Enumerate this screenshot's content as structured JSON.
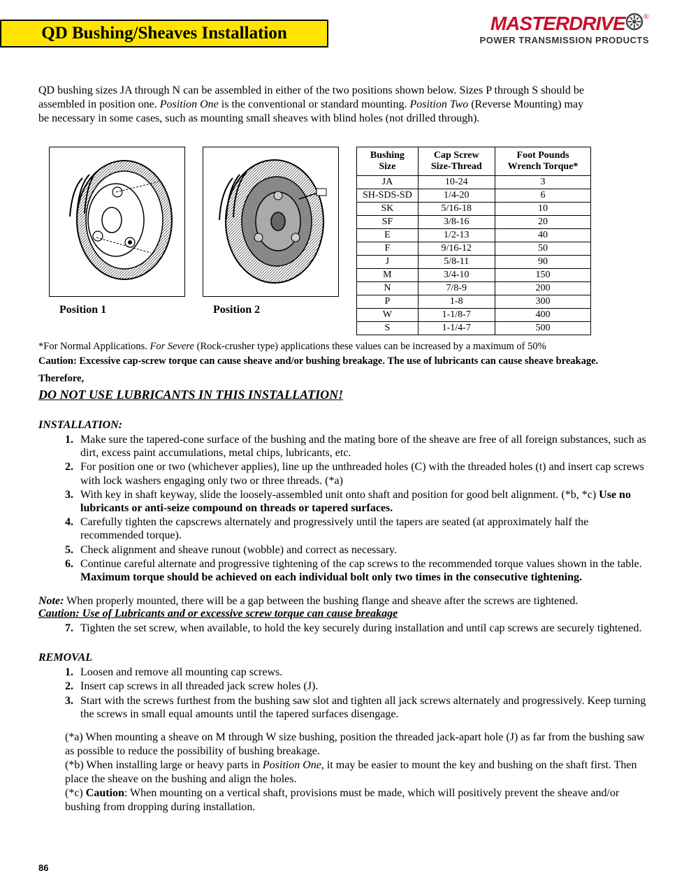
{
  "header": {
    "title": "QD Bushing/Sheaves Installation",
    "title_bg": "#ffe400",
    "title_border": "#000000"
  },
  "logo": {
    "main": "MASTERDRIVE",
    "main_color": "#c8102e",
    "reg": "®",
    "sub": "POWER TRANSMISSION PRODUCTS"
  },
  "intro": {
    "line1a": "QD bushing sizes JA through N can be assembled in either of the two positions shown below.  Sizes P through  S should be",
    "line2a": "assembled in position one.  ",
    "position_one": "Position One",
    "line2b": " is the conventional or standard mounting.  ",
    "position_two": "Position Two",
    "line2c": " (Reverse Mounting)  may",
    "line3": "be necessary in some cases, such as mounting small sheaves with blind holes (not drilled through)."
  },
  "figures": {
    "pos1_label": "Position 1",
    "pos2_label": "Position 2"
  },
  "table": {
    "headers": [
      "Bushing\nSize",
      "Cap Screw\nSize-Thread",
      "Foot Pounds\nWrench Torque*"
    ],
    "rows": [
      [
        "JA",
        "10-24",
        "3"
      ],
      [
        "SH-SDS-SD",
        "1/4-20",
        "6"
      ],
      [
        "SK",
        "5/16-18",
        "10"
      ],
      [
        "SF",
        "3/8-16",
        "20"
      ],
      [
        "E",
        "1/2-13",
        "40"
      ],
      [
        "F",
        "9/16-12",
        "50"
      ],
      [
        "J",
        "5/8-11",
        "90"
      ],
      [
        "M",
        "3/4-10",
        "150"
      ],
      [
        "N",
        "7/8-9",
        "200"
      ],
      [
        "P",
        "1-8",
        "300"
      ],
      [
        "W",
        "1-1/8-7",
        "400"
      ],
      [
        "S",
        "1-1/4-7",
        "500"
      ]
    ]
  },
  "footnote": {
    "pre": "*For Normal Applications. ",
    "severe": "For Severe",
    "post": " (Rock-crusher type) applications these values can be increased by a maximum of 50%"
  },
  "caution_line": "Caution: Excessive cap-screw torque can cause sheave and/or bushing breakage. The use of lubricants can cause sheave breakage.",
  "therefore": "Therefore,",
  "lubricant_warning": "DO NOT USE LUBRICANTS IN THIS INSTALLATION!",
  "installation": {
    "heading": "INSTALLATION:",
    "steps": [
      {
        "n": "1.",
        "text": "Make sure the tapered-cone surface of the bushing and the mating bore of the sheave are free of all foreign substances, such as dirt, excess paint accumulations, metal chips, lubricants, etc."
      },
      {
        "n": "2.",
        "text_a": "For position one or two (whichever applies), line up the unthreaded holes (C) with the threaded holes (t) and insert cap screws with lock washers engaging only two or three threads.   (*a)"
      },
      {
        "n": "3.",
        "text_a": "With key in shaft keyway, slide the loosely-assembled unit onto shaft and position for good belt alignment. (*b, *c)  ",
        "bold": "Use no lubricants or anti-seize compound on threads or tapered surfaces."
      },
      {
        "n": "4.",
        "text": "    Carefully tighten the capscrews alternately and progressively until the tapers are seated (at approximately half the recommended torque)."
      },
      {
        "n": "5.",
        "text": "    Check alignment and sheave runout (wobble) and correct as necessary."
      },
      {
        "n": "6.",
        "text_a": "    Continue careful alternate and progressive tightening of the cap screws to the recommended torque values shown in the table.  ",
        "bold": "Maximum torque should be achieved on each individual bolt only two times in the consecutive tightening."
      }
    ]
  },
  "note": {
    "label": "Note:",
    "text": "  When properly mounted, there will be a gap between the bushing flange and sheave after the screws are tightened."
  },
  "caution2": "Caution:  Use of Lubricants and or excessive screw torque can cause breakage",
  "step7": {
    "n": "7.",
    "text": "Tighten the set screw, when available, to hold the key securely during installation and until cap screws are securely tightened."
  },
  "removal": {
    "heading": "REMOVAL",
    "steps": [
      {
        "n": "1.",
        "text": "Loosen and remove all mounting cap screws."
      },
      {
        "n": "2.",
        "text": "Insert cap screws in all threaded jack screw holes (J)."
      },
      {
        "n": "3.",
        "text": "Start with the screws furthest from the bushing saw slot and tighten all jack screws alternately and progressively.  Keep turning the screws in small equal amounts until the tapered surfaces disengage."
      }
    ]
  },
  "notes": {
    "a": "(*a)  When mounting a sheave on M through W size bushing, position the threaded jack-apart hole (J) as far from the bushing saw as possible to reduce the possibility of bushing breakage.",
    "b_pre": "(*b)  When installing large or heavy parts in ",
    "b_em": "Position One",
    "b_post": ", it may be easier to mount the key and bushing on the shaft first.  Then place the sheave on the bushing and align the holes.",
    "c_pre": "(*c)  ",
    "c_bold": "Caution",
    "c_post": ": When mounting on a vertical shaft, provisions must be made, which will positively prevent the sheave and/or bushing from dropping during installation."
  },
  "page_number": "86"
}
